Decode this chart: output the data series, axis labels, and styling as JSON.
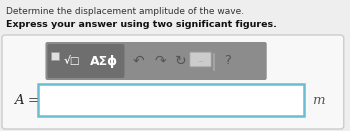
{
  "line1": "Determine the displacement amplitude of the wave.",
  "line2": "Express your answer using two significant figures.",
  "label": "A =",
  "unit": "m",
  "fig_bg": "#eeeeee",
  "outer_box_facecolor": "#f8f8f8",
  "outer_box_edgecolor": "#cccccc",
  "toolbar_bg": "#8c8c8c",
  "sqrt_btn_bg": "#6e6e6e",
  "asigma_btn_bg": "#6e6e6e",
  "toolbar_text": "AΣϕ",
  "input_border_color": "#6bbdd1",
  "input_face_color": "#ffffff",
  "text_color_normal": "#333333",
  "text_color_bold": "#111111",
  "unit_color": "#555555",
  "figwidth": 3.5,
  "figheight": 1.31,
  "dpi": 100
}
